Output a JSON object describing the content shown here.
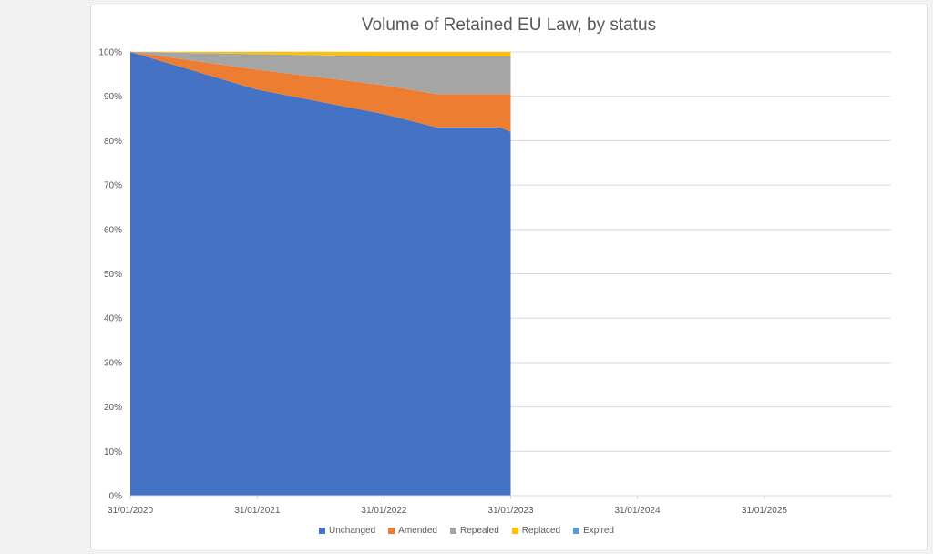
{
  "chart_data": {
    "type": "area",
    "stacked": true,
    "normalized": true,
    "title": "Volume of Retained EU Law, by status",
    "x_tick_labels": [
      "31/01/2020",
      "31/01/2021",
      "31/01/2022",
      "31/01/2023",
      "31/01/2024",
      "31/01/2025"
    ],
    "xlim": [
      "31/01/2020",
      "31/01/2026"
    ],
    "y_tick_labels": [
      "0%",
      "10%",
      "20%",
      "30%",
      "40%",
      "50%",
      "60%",
      "70%",
      "80%",
      "90%",
      "100%"
    ],
    "ylim": [
      0,
      100
    ],
    "grid": true,
    "legend_position": "bottom",
    "x": [
      "31/01/2020",
      "31/01/2021",
      "31/01/2022",
      "01/07/2022",
      "31/12/2022",
      "31/01/2023"
    ],
    "series": [
      {
        "name": "Unchanged",
        "color": "#4472C4",
        "values": [
          100,
          91.5,
          86,
          83,
          83,
          82
        ]
      },
      {
        "name": "Amended",
        "color": "#ED7D31",
        "values": [
          0,
          4.5,
          6.5,
          7.5,
          7.5,
          8.5
        ]
      },
      {
        "name": "Repealed",
        "color": "#A5A5A5",
        "values": [
          0,
          3.5,
          6.5,
          8.5,
          8.5,
          8.5
        ]
      },
      {
        "name": "Replaced",
        "color": "#FFC000",
        "values": [
          0,
          0.5,
          1,
          1,
          1,
          1
        ]
      },
      {
        "name": "Expired",
        "color": "#5B9BD5",
        "values": [
          0,
          0,
          0,
          0,
          0,
          0
        ]
      }
    ]
  }
}
